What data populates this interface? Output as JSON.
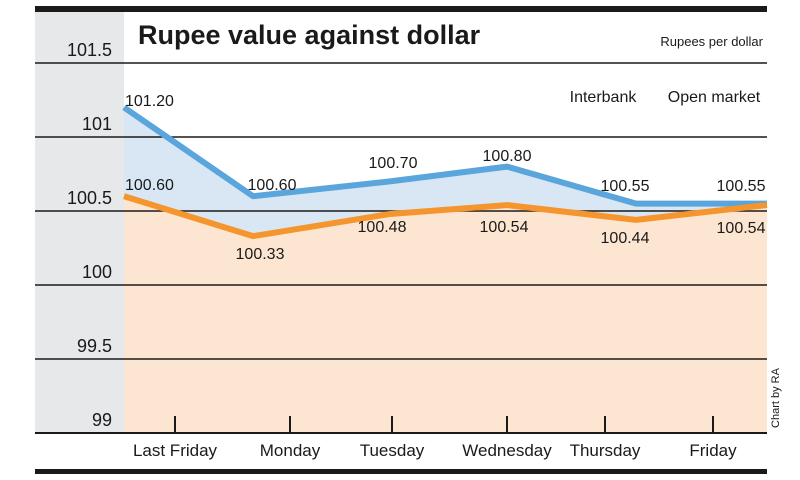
{
  "chart_data": {
    "type": "line",
    "title": "Rupee value against dollar",
    "unit_label": "Rupees per dollar",
    "credit": "Chart by RA",
    "categories": [
      "Last Friday",
      "Monday",
      "Tuesday",
      "Wednesday",
      "Thursday",
      "Friday"
    ],
    "ylim": [
      99,
      101.5
    ],
    "yticks": [
      "101.5",
      "101",
      "100.5",
      "100",
      "99.5",
      "99"
    ],
    "grid": true,
    "legend_position": "top-right",
    "series": [
      {
        "name": "Interbank",
        "color": "#5aa5dc",
        "fill": "#d9e7f5",
        "values": [
          101.2,
          100.6,
          100.7,
          100.8,
          100.55,
          100.55
        ],
        "labels": [
          "101.20",
          "100.60",
          "100.70",
          "100.80",
          "100.55",
          "100.55"
        ]
      },
      {
        "name": "Open market",
        "color": "#f4962d",
        "fill": "#fde6d1",
        "values": [
          100.6,
          100.33,
          100.48,
          100.54,
          100.44,
          100.54
        ],
        "labels": [
          "100.60",
          "100.33",
          "100.48",
          "100.54",
          "100.44",
          "100.54"
        ]
      }
    ],
    "colors": {
      "axis_panel": "#e7e8ea",
      "frame": "#1a1a1a"
    }
  }
}
